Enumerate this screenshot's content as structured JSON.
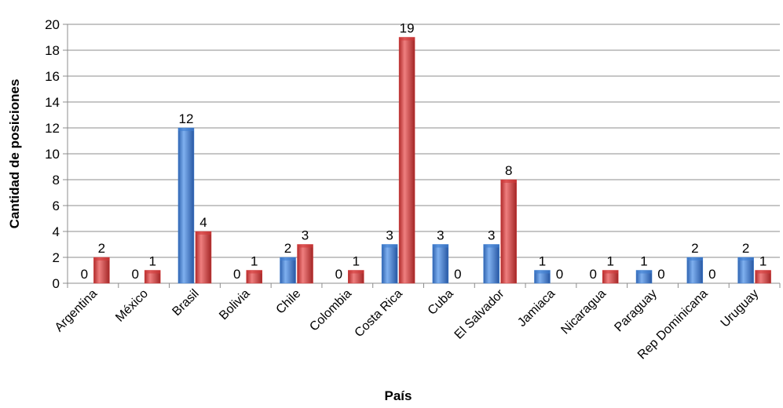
{
  "chart_data": {
    "type": "bar",
    "xlabel": "País",
    "ylabel": "Cantidad  de posiciones",
    "ylim": [
      0,
      20
    ],
    "ytick_step": 2,
    "grid": true,
    "categories": [
      "Argentina",
      "México",
      "Brasil",
      "Bolivia",
      "Chile",
      "Colombia",
      "Costa Rica",
      "Cuba",
      "El Salvador",
      "Jamiaca",
      "Nicaragua",
      "Paraguay",
      "Rep Dominicana",
      "Uruguay"
    ],
    "series": [
      {
        "color": "#3f7fd0",
        "values": [
          0,
          0,
          12,
          0,
          2,
          0,
          3,
          3,
          3,
          1,
          0,
          1,
          2,
          2
        ]
      },
      {
        "color": "#d23a3a",
        "values": [
          2,
          1,
          4,
          1,
          3,
          1,
          19,
          0,
          8,
          0,
          1,
          0,
          0,
          1
        ]
      }
    ]
  }
}
